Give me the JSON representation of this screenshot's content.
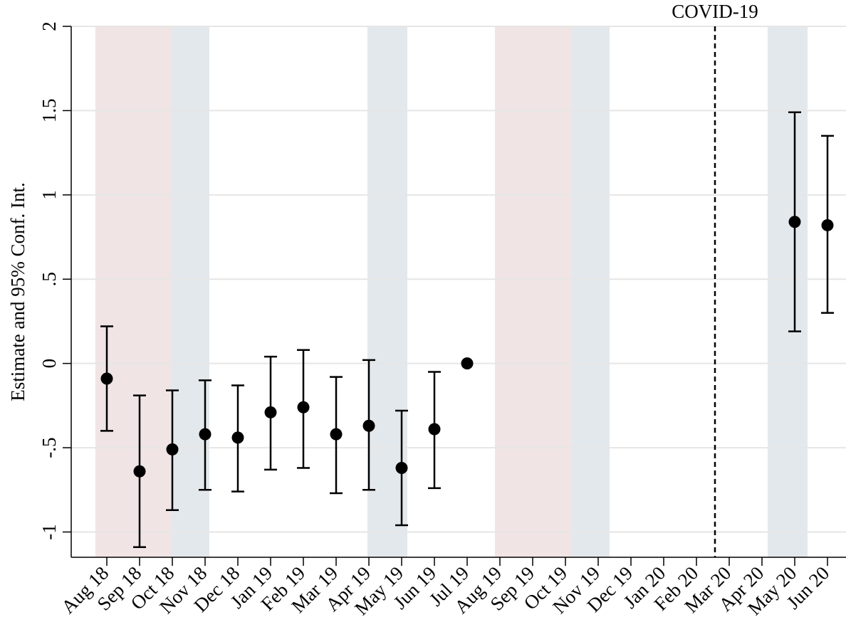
{
  "chart_data": {
    "type": "errorbar",
    "y_label": "Estimate and 95% Conf. Int.",
    "categories": [
      "Aug 18",
      "Sep 18",
      "Oct 18",
      "Nov 18",
      "Dec 18",
      "Jan 19",
      "Feb 19",
      "Mar 19",
      "Apr 19",
      "May 19",
      "Jun 19",
      "Jul 19",
      "Aug 19",
      "Sep 19",
      "Oct 19",
      "Nov 19",
      "Dec 19",
      "Jan 20",
      "Feb 20",
      "Mar 20",
      "Apr 20",
      "May 20",
      "Jun 20"
    ],
    "series": [
      {
        "color": "#000000",
        "values": [
          -0.09,
          -0.64,
          -0.51,
          -0.42,
          -0.44,
          -0.29,
          -0.26,
          -0.42,
          -0.37,
          -0.62,
          -0.39,
          0,
          null,
          null,
          null,
          null,
          null,
          null,
          null,
          null,
          null,
          0.84,
          0.82
        ],
        "lower": [
          -0.4,
          -1.09,
          -0.87,
          -0.75,
          -0.76,
          -0.63,
          -0.62,
          -0.77,
          -0.75,
          -0.96,
          -0.74,
          null,
          null,
          null,
          null,
          null,
          null,
          null,
          null,
          null,
          null,
          0.19,
          0.3
        ],
        "upper": [
          0.22,
          -0.19,
          -0.16,
          -0.1,
          -0.13,
          0.04,
          0.08,
          -0.08,
          0.02,
          -0.28,
          -0.05,
          null,
          null,
          null,
          null,
          null,
          null,
          null,
          null,
          null,
          null,
          1.49,
          1.35
        ]
      }
    ],
    "ylim": [
      -1.15,
      2
    ],
    "yticks": [
      -1,
      {
        "value": -0.5,
        "label": "-.5"
      },
      0,
      {
        "value": 0.5,
        "label": ".5"
      },
      1,
      1.5,
      2
    ],
    "grid": true,
    "annotation": {
      "text": "COVID-19",
      "category": "Mar 20"
    }
  }
}
